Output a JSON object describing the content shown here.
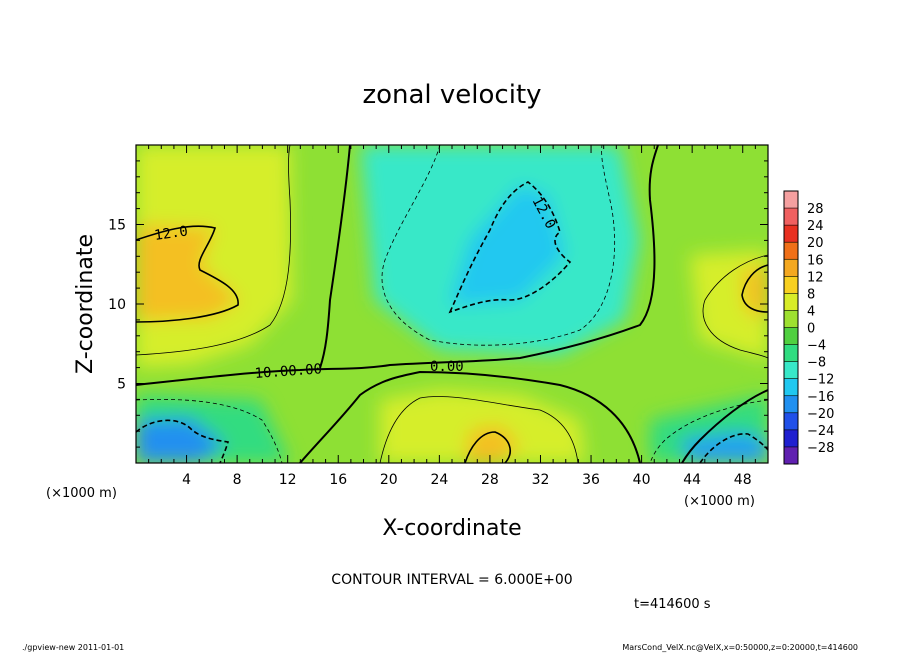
{
  "chart_data": {
    "type": "heatmap",
    "title": "zonal velocity",
    "xlabel": "X-coordinate",
    "ylabel": "Z-coordinate",
    "x_unit_label": "(×1000 m)",
    "z_unit_label": "(×1000 m)",
    "xlim": [
      0,
      50
    ],
    "zlim": [
      0,
      20
    ],
    "x_ticks": [
      "4",
      "8",
      "12",
      "16",
      "20",
      "24",
      "28",
      "32",
      "36",
      "40",
      "44",
      "48"
    ],
    "z_ticks": [
      "5",
      "10",
      "15"
    ],
    "colorbar_labels": [
      "28",
      "24",
      "20",
      "16",
      "12",
      "8",
      "4",
      "0",
      "−4",
      "−8",
      "−12",
      "−16",
      "−20",
      "−24",
      "−28"
    ],
    "colorbar_colors": [
      "#f5a0a0",
      "#f06060",
      "#e83020",
      "#f07018",
      "#f4a820",
      "#f8d020",
      "#d8ec28",
      "#9ee030",
      "#50d040",
      "#30dc80",
      "#38e8c8",
      "#20c8f0",
      "#2090f0",
      "#2050e8",
      "#2020d0",
      "#6020b0"
    ],
    "contour_labels": [
      "12.0",
      "12.0",
      "10.00.00",
      "0.00"
    ],
    "contour_interval_text": "CONTOUR INTERVAL = 6.000E+00",
    "time_text": "t=414600 s"
  },
  "footer": {
    "left": "./gpview-new  2011-01-01",
    "right": "MarsCond_VelX.nc@VelX,x=0:50000,z=0:20000,t=414600"
  }
}
